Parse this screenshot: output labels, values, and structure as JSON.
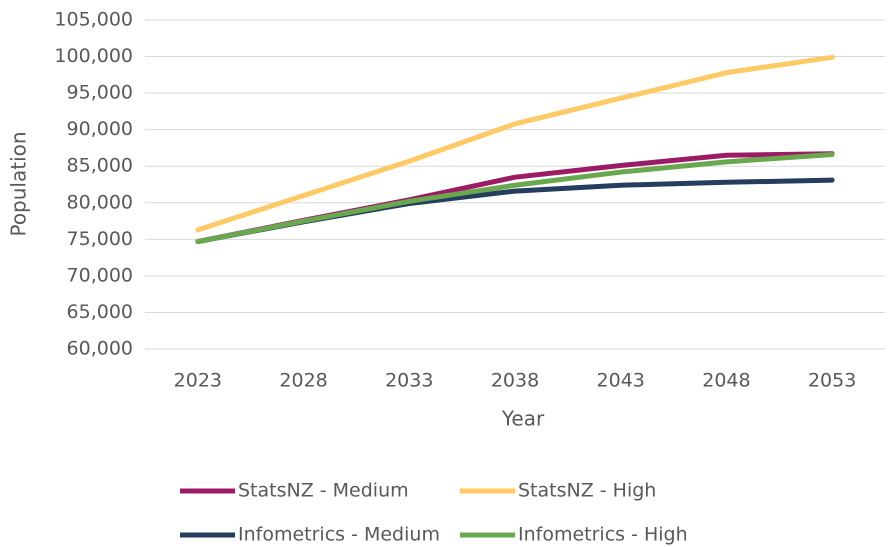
{
  "chart_data": {
    "type": "line",
    "x_label": "Year",
    "y_label": "Population",
    "categories": [
      "2023",
      "2028",
      "2033",
      "2038",
      "2043",
      "2048",
      "2053"
    ],
    "series": [
      {
        "name": "StatsNZ - Medium",
        "color": "#9b1c64",
        "values": [
          74700,
          77600,
          80400,
          83500,
          85100,
          86500,
          86700
        ]
      },
      {
        "name": "StatsNZ - High",
        "color": "#ffc965",
        "values": [
          76300,
          81000,
          85700,
          90800,
          94300,
          97800,
          99900
        ]
      },
      {
        "name": "Infometrics - Medium",
        "color": "#253d5e",
        "values": [
          74700,
          77400,
          79900,
          81600,
          82400,
          82800,
          83100
        ]
      },
      {
        "name": "Infometrics - High",
        "color": "#6aa84f",
        "values": [
          74700,
          77500,
          80200,
          82400,
          84200,
          85600,
          86600
        ]
      }
    ],
    "ylim": [
      60000,
      105000
    ],
    "yticks": [
      {
        "value": 60000,
        "label": "60,000"
      },
      {
        "value": 65000,
        "label": "65,000"
      },
      {
        "value": 70000,
        "label": "70,000"
      },
      {
        "value": 75000,
        "label": "75,000"
      },
      {
        "value": 80000,
        "label": "80,000"
      },
      {
        "value": 85000,
        "label": "85,000"
      },
      {
        "value": 90000,
        "label": "90,000"
      },
      {
        "value": 95000,
        "label": "95,000"
      },
      {
        "value": 100000,
        "label": "100,000"
      },
      {
        "value": 105000,
        "label": "105,000"
      }
    ],
    "grid": true,
    "legend": "bottom"
  }
}
